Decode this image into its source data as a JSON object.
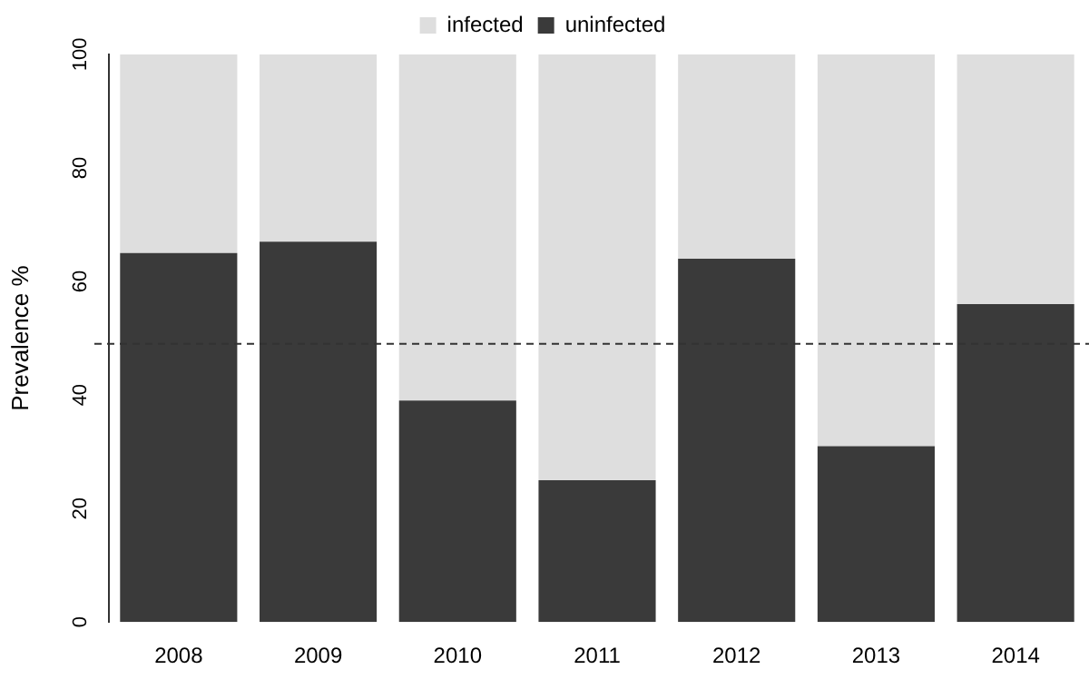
{
  "chart_data": {
    "type": "bar",
    "stacked": true,
    "ylabel": "Prevalence %",
    "categories": [
      "2008",
      "2009",
      "2010",
      "2011",
      "2012",
      "2013",
      "2014"
    ],
    "series": [
      {
        "name": "uninfected",
        "color": "#3a3a3a",
        "values": [
          65,
          67,
          39,
          25,
          64,
          31,
          56
        ]
      },
      {
        "name": "infected",
        "color": "#dedede",
        "values": [
          35,
          33,
          61,
          75,
          36,
          69,
          44
        ]
      }
    ],
    "ylim": [
      0,
      100
    ],
    "yticks": [
      0,
      20,
      40,
      60,
      80,
      100
    ],
    "grid": false,
    "legend": "top",
    "ref_lines": [
      {
        "axis": "y",
        "value": 49,
        "line_style": "dashed",
        "color": "#333333"
      }
    ]
  }
}
